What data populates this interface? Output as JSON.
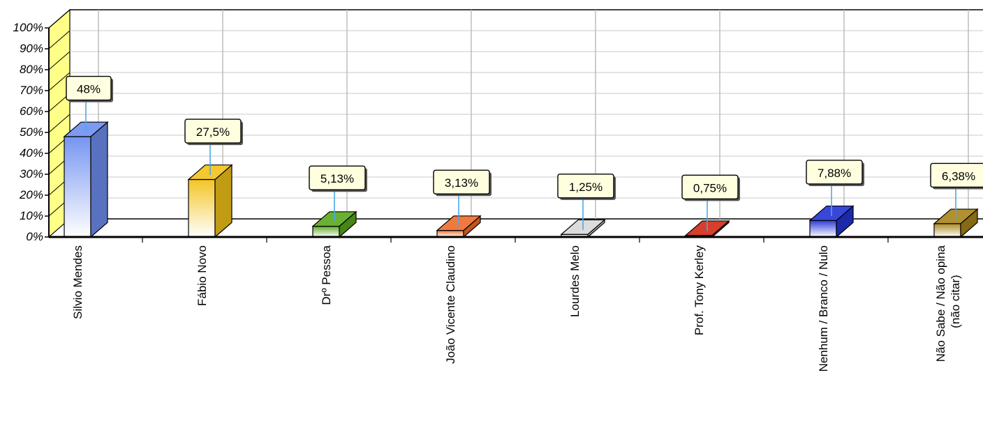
{
  "chart_data": {
    "type": "bar",
    "title": "",
    "xlabel": "",
    "ylabel": "",
    "ylim": [
      0,
      100
    ],
    "y_ticks": [
      "0%",
      "10%",
      "20%",
      "30%",
      "40%",
      "50%",
      "60%",
      "70%",
      "80%",
      "90%",
      "100%"
    ],
    "categories": [
      "Silvio Mendes",
      "Fábio Novo",
      "Drº Pessoa",
      "João Vicente Claudino",
      "Lourdes Melo",
      "Prof. Tony Kerley",
      "Nenhum / Branco / Nulo",
      [
        "Não Sabe / Não opina",
        "(não citar)"
      ]
    ],
    "values": [
      48,
      27.5,
      5.13,
      3.13,
      1.25,
      0.75,
      7.88,
      6.38
    ],
    "data_labels": [
      "48%",
      "27,5%",
      "5,13%",
      "3,13%",
      "1,25%",
      "0,75%",
      "7,88%",
      "6,38%"
    ],
    "bar_colors": [
      "#6f8ff0",
      "#f2c21a",
      "#58a81c",
      "#f06a28",
      "#d8d8d8",
      "#d22a14",
      "#2233d4",
      "#a88418"
    ],
    "grid": true,
    "legend": "none",
    "style": "3d"
  }
}
